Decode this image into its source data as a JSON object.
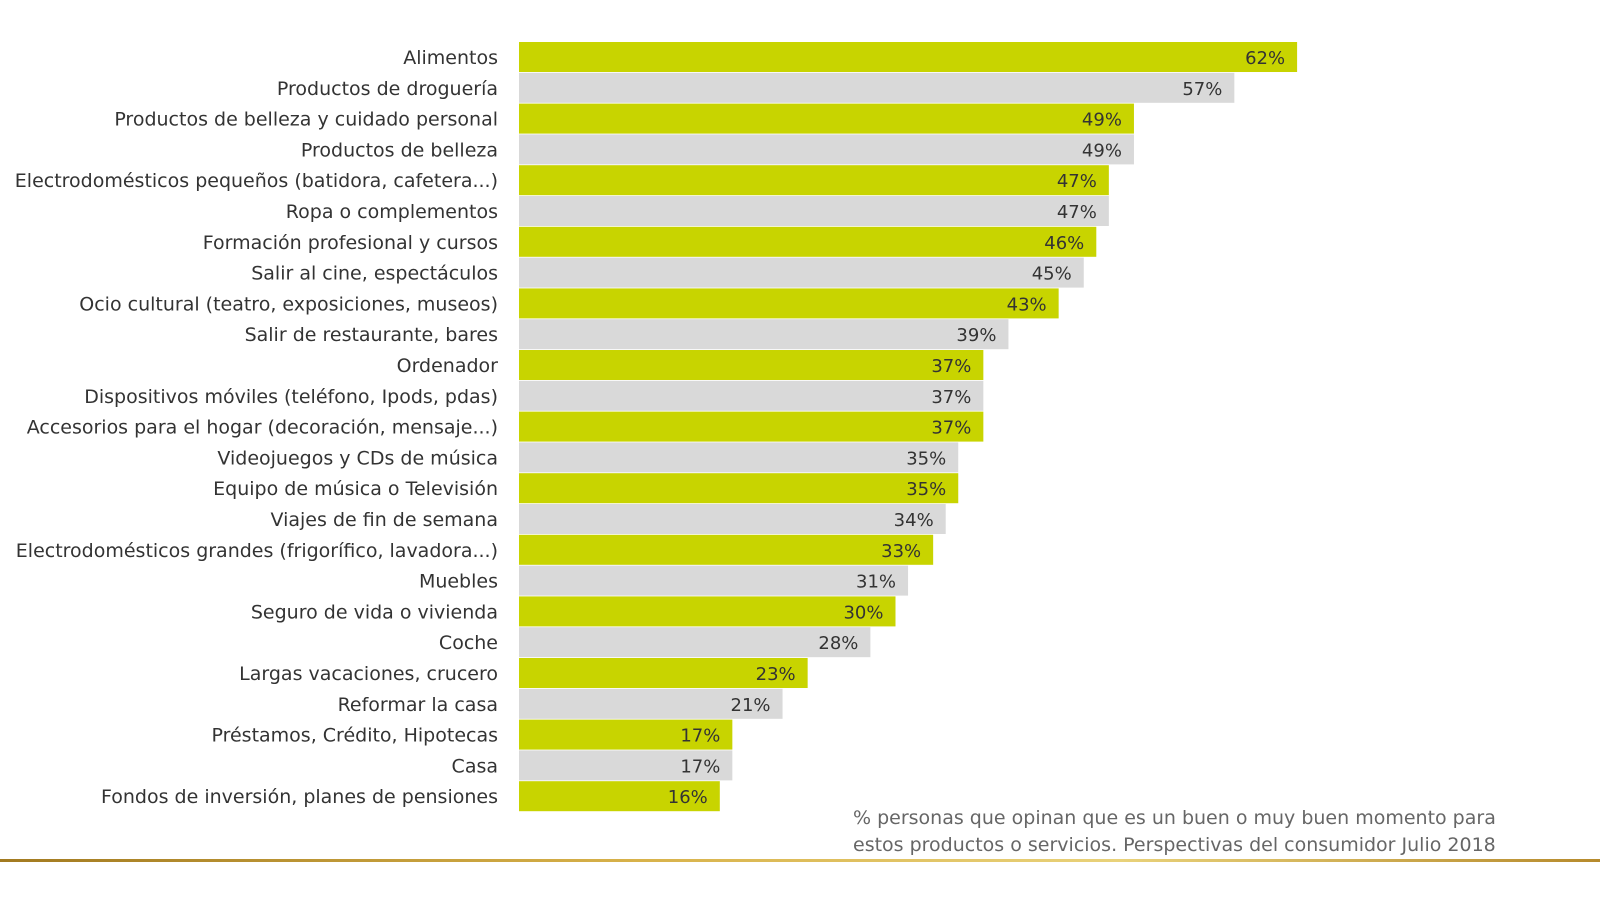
{
  "chart_data": {
    "type": "bar",
    "orientation": "horizontal",
    "title": "",
    "xlabel": "",
    "ylabel": "",
    "xlim": [
      0,
      62
    ],
    "grid": false,
    "categories": [
      "Alimentos",
      "Productos de droguería",
      "Productos de belleza y cuidado personal",
      "Productos de belleza",
      "Electrodomésticos pequeños (batidora, cafetera...)",
      "Ropa o complementos",
      "Formación profesional y cursos",
      "Salir al cine, espectáculos",
      "Ocio cultural (teatro, exposiciones, museos)",
      "Salir de restaurante, bares",
      "Ordenador",
      "Dispositivos móviles (teléfono, Ipods, pdas)",
      "Accesorios para el hogar (decoración, mensaje...)",
      "Videojuegos y CDs de música",
      "Equipo de música o Televisión",
      "Viajes de fin de semana",
      "Electrodomésticos grandes (frigorífico, lavadora...)",
      "Muebles",
      "Seguro de vida o vivienda",
      "Coche",
      "Largas vacaciones, crucero",
      "Reformar la casa",
      "Préstamos, Crédito, Hipotecas",
      "Casa",
      "Fondos de inversión, planes de pensiones"
    ],
    "values": [
      62,
      57,
      49,
      49,
      47,
      47,
      46,
      45,
      43,
      39,
      37,
      37,
      37,
      35,
      35,
      34,
      33,
      31,
      30,
      28,
      23,
      21,
      17,
      17,
      16
    ],
    "value_labels": [
      "62%",
      "57%",
      "49%",
      "49%",
      "47%",
      "47%",
      "46%",
      "45%",
      "43%",
      "39%",
      "37%",
      "37%",
      "37%",
      "35%",
      "35%",
      "34%",
      "33%",
      "31%",
      "30%",
      "28%",
      "23%",
      "21%",
      "17%",
      "17%",
      "16%"
    ],
    "colors": [
      "#c8d400",
      "#d9d9d9"
    ],
    "annotation_line1": "% personas que opinan que es un buen o muy buen momento para",
    "annotation_line2": "estos productos o servicios. Perspectivas del consumidor Julio 2018"
  }
}
